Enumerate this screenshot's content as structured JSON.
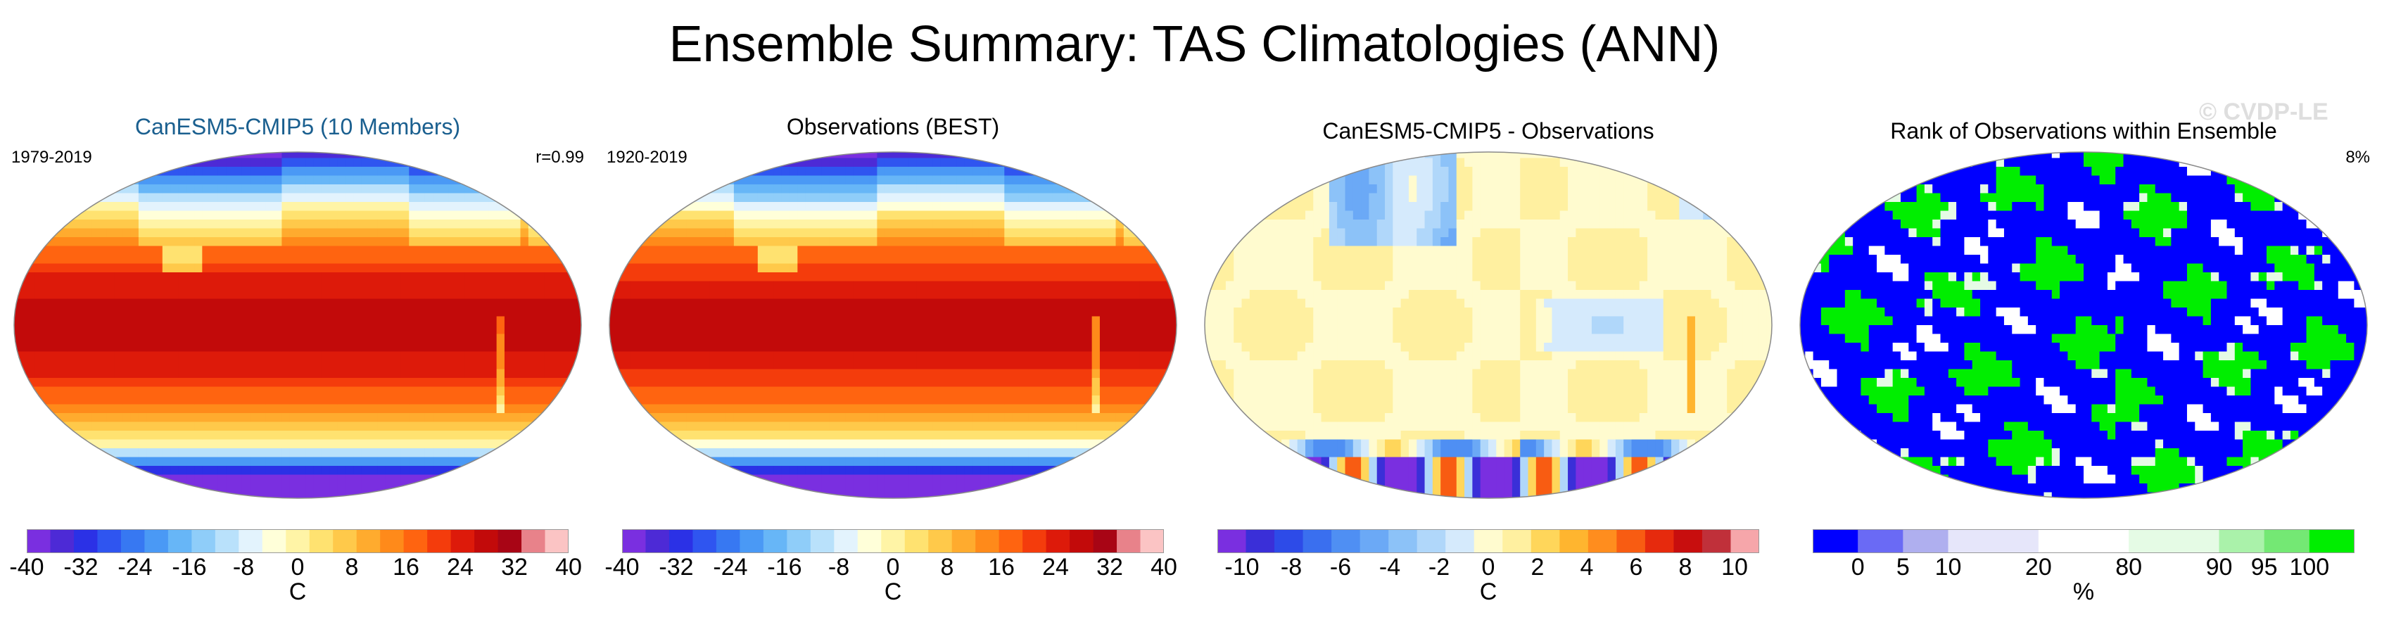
{
  "figure": {
    "title": "Ensemble Summary: TAS Climatologies (ANN)",
    "watermark": "© CVDP-LE"
  },
  "chart_data": [
    {
      "type": "heatmap",
      "title": "CanESM5-CMIP5 (10 Members)",
      "title_color": "#1a5f8f",
      "period": "1979-2019",
      "stat": "r=0.99",
      "variable": "surface air temperature climatology",
      "unit": "C",
      "scale": [
        -40,
        40
      ],
      "tick_labels": [
        "-40",
        "-32",
        "-24",
        "-16",
        "-8",
        "0",
        "8",
        "16",
        "24",
        "32",
        "40"
      ],
      "colormap": "temp"
    },
    {
      "type": "heatmap",
      "title": "Observations (BEST)",
      "title_color": "#000000",
      "period": "1920-2019",
      "stat": "",
      "variable": "surface air temperature climatology",
      "unit": "C",
      "scale": [
        -40,
        40
      ],
      "tick_labels": [
        "-40",
        "-32",
        "-24",
        "-16",
        "-8",
        "0",
        "8",
        "16",
        "24",
        "32",
        "40"
      ],
      "colormap": "temp"
    },
    {
      "type": "heatmap",
      "title": "CanESM5-CMIP5 - Observations",
      "title_color": "#000000",
      "period": "",
      "stat": "",
      "variable": "model minus observations difference",
      "unit": "C",
      "scale": [
        -11,
        11
      ],
      "tick_labels": [
        "-10",
        "-8",
        "-6",
        "-4",
        "-2",
        "0",
        "2",
        "4",
        "6",
        "8",
        "10"
      ],
      "colormap": "diff"
    },
    {
      "type": "heatmap",
      "title": "Rank of Observations within Ensemble",
      "title_color": "#000000",
      "period": "",
      "stat": "8%",
      "variable": "rank percentile",
      "unit": "%",
      "scale": [
        0,
        100
      ],
      "tick_labels": [
        "0",
        "5",
        "10",
        "20",
        "80",
        "90",
        "95",
        "100"
      ],
      "colormap": "rank"
    }
  ],
  "colors": {
    "temp": [
      "#7a2fe0",
      "#4d2ad6",
      "#2b31e6",
      "#2f55f0",
      "#3778f2",
      "#4a99f5",
      "#67b6f7",
      "#8fcdf9",
      "#b9e1fb",
      "#e3f3fd",
      "#ffffd9",
      "#fff4a6",
      "#ffe270",
      "#ffc94a",
      "#ffab2e",
      "#ff8a1a",
      "#ff6410",
      "#f43c0c",
      "#dd1a0a",
      "#c20a0a",
      "#a80515",
      "#e8828a",
      "#fbc4c4"
    ],
    "diff": [
      "#7a2fe0",
      "#3a2fd8",
      "#2d4be8",
      "#3a6fef",
      "#4f8ff3",
      "#6ba9f6",
      "#8cc2f8",
      "#b0d7fa",
      "#d5eafc",
      "#fffbcf",
      "#fff0a0",
      "#ffd65a",
      "#ffb52f",
      "#ff8d1e",
      "#f85c12",
      "#e62a0d",
      "#c80e0e",
      "#c0303a",
      "#f6a6aa"
    ],
    "rank": [
      "#0000ff",
      "#6a6af5",
      "#afafef",
      "#e6e6fa",
      "#ffffff",
      "#e5fbe5",
      "#aaf2aa",
      "#74e874",
      "#00ee00"
    ]
  }
}
